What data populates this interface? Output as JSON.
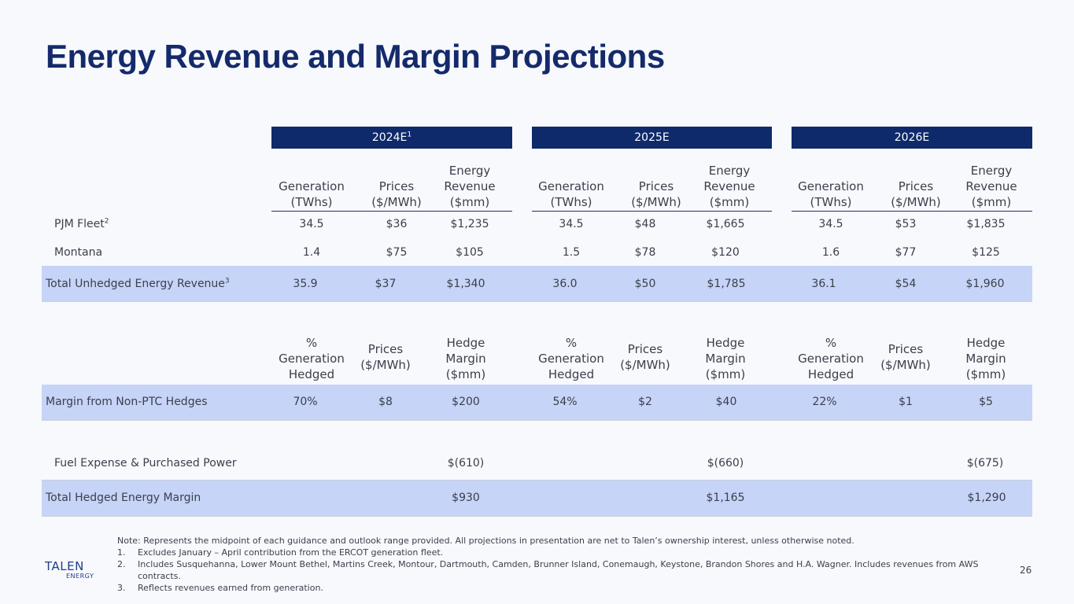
{
  "title": "Energy Revenue and Margin Projections",
  "years": [
    {
      "label": "2024E",
      "sup": "1"
    },
    {
      "label": "2025E",
      "sup": ""
    },
    {
      "label": "2026E",
      "sup": ""
    }
  ],
  "revenue_headers": {
    "generation": "Generation (TWhs)",
    "prices": "Prices ($/MWh)",
    "revenue": "Energy Revenue ($mm)"
  },
  "pjm": {
    "label": "PJM Fleet",
    "sup": "2",
    "values": [
      "34.5",
      "$36",
      "$1,235",
      "34.5",
      "$48",
      "$1,665",
      "34.5",
      "$53",
      "$1,835"
    ]
  },
  "montana": {
    "label": "Montana",
    "values": [
      "1.4",
      "$75",
      "$105",
      "1.5",
      "$78",
      "$120",
      "1.6",
      "$77",
      "$125"
    ]
  },
  "total_unhedged": {
    "label": "Total Unhedged Energy Revenue",
    "sup": "3",
    "values": [
      "35.9",
      "$37",
      "$1,340",
      "36.0",
      "$50",
      "$1,785",
      "36.1",
      "$54",
      "$1,960"
    ]
  },
  "hedge_headers": {
    "pct": "% Generation Hedged",
    "prices": "Prices ($/MWh)",
    "margin": "Hedge Margin ($mm)"
  },
  "non_ptc": {
    "label": "Margin from Non-PTC Hedges",
    "values": [
      "70%",
      "$8",
      "$200",
      "54%",
      "$2",
      "$40",
      "22%",
      "$1",
      "$5"
    ]
  },
  "fuel": {
    "label": "Fuel Expense & Purchased Power",
    "values": [
      "$(610)",
      "$(660)",
      "$(675)"
    ]
  },
  "total_hedged": {
    "label": "Total Hedged Energy Margin",
    "values": [
      "$930",
      "$1,165",
      "$1,290"
    ]
  },
  "notes": {
    "main": "Note: Represents the midpoint of each guidance and outlook range provided. All projections in presentation are net to Talen’s ownership interest, unless otherwise noted.",
    "items": [
      {
        "num": "1.",
        "text": "Excludes January – April contribution from the ERCOT generation fleet."
      },
      {
        "num": "2.",
        "text": "Includes Susquehanna, Lower Mount Bethel, Martins Creek, Montour, Dartmouth, Camden, Brunner Island, Conemaugh, Keystone, Brandon Shores and H.A. Wagner. Includes revenues from AWS contracts."
      },
      {
        "num": "3.",
        "text": "Reflects revenues earned from generation."
      }
    ]
  },
  "logo": {
    "top": "TALEN",
    "bottom": "ENERGY"
  },
  "page_number": "26"
}
